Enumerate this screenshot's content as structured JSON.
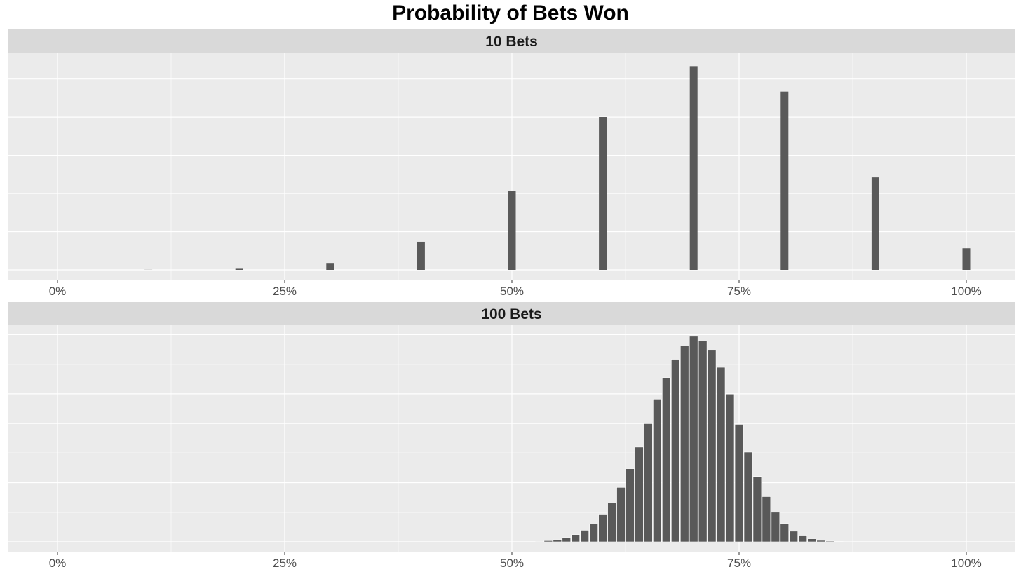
{
  "title": "Probability of Bets Won",
  "colors": {
    "panel_bg": "#EBEBEB",
    "strip_bg": "#D9D9D9",
    "grid": "#FFFFFF",
    "bar": "#595959"
  },
  "chart_data": [
    {
      "type": "bar",
      "panel_label": "10 Bets",
      "xlim": [
        0,
        1
      ],
      "x_ticks": [
        0,
        0.25,
        0.5,
        0.75,
        1.0
      ],
      "x_tick_labels": [
        "0%",
        "25%",
        "50%",
        "75%",
        "100%"
      ],
      "x": [
        0.0,
        0.1,
        0.2,
        0.3,
        0.4,
        0.5,
        0.6,
        0.7,
        0.8,
        0.9,
        1.0
      ],
      "values": [
        5.9e-06,
        0.000138,
        0.001447,
        0.009002,
        0.036757,
        0.102919,
        0.200121,
        0.266828,
        0.233474,
        0.121061,
        0.028248
      ],
      "ylim": [
        0,
        0.28
      ],
      "y_ticks": [
        0,
        0.05,
        0.1,
        0.15,
        0.2,
        0.25
      ],
      "y_tick_labels_shown": false,
      "xlabel": "",
      "ylabel": "",
      "grid": true
    },
    {
      "type": "bar",
      "panel_label": "100 Bets",
      "xlim": [
        0,
        1
      ],
      "x_ticks": [
        0,
        0.25,
        0.5,
        0.75,
        1.0
      ],
      "x_tick_labels": [
        "0%",
        "25%",
        "50%",
        "75%",
        "100%"
      ],
      "x": [
        0.53,
        0.54,
        0.55,
        0.56,
        0.57,
        0.58,
        0.59,
        0.6,
        0.61,
        0.62,
        0.63,
        0.64,
        0.65,
        0.66,
        0.67,
        0.68,
        0.69,
        0.7,
        0.71,
        0.72,
        0.73,
        0.74,
        0.75,
        0.76,
        0.77,
        0.78,
        0.79,
        0.8,
        0.81,
        0.82,
        0.83,
        0.84,
        0.85,
        0.86,
        0.87
      ],
      "values": [
        0.0002,
        0.0005,
        0.001,
        0.0018,
        0.003,
        0.0049,
        0.0076,
        0.0114,
        0.0165,
        0.023,
        0.0309,
        0.04,
        0.0499,
        0.06,
        0.0693,
        0.0771,
        0.0827,
        0.0868,
        0.0848,
        0.0809,
        0.0737,
        0.0624,
        0.0496,
        0.0379,
        0.0276,
        0.0191,
        0.0125,
        0.0077,
        0.0045,
        0.0025,
        0.0013,
        0.0006,
        0.0003,
        0.0001,
        5e-05
      ],
      "ylim": [
        0,
        0.09
      ],
      "y_ticks": [
        0,
        0.0125,
        0.025,
        0.0375,
        0.05,
        0.0625,
        0.075,
        0.0875
      ],
      "y_tick_labels_shown": false,
      "xlabel": "",
      "ylabel": "",
      "grid": true
    }
  ]
}
